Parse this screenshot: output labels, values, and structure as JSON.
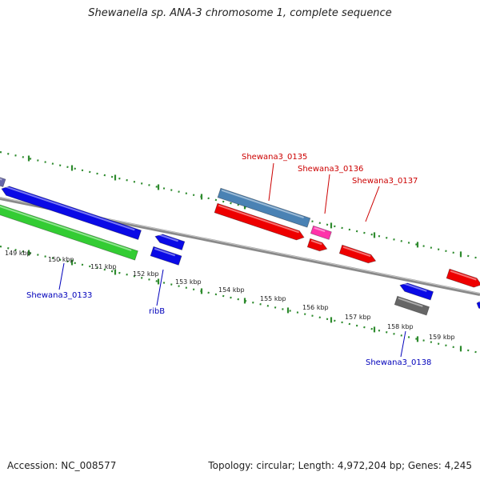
{
  "title": "Shewanella sp. ANA-3 chromosome 1, complete sequence",
  "footer": {
    "accession": "Accession: NC_008577",
    "topology": "Topology: circular; Length: 4,972,204 bp; Genes: 4,245"
  },
  "colors": {
    "backbone": "#8a8a8a",
    "tick_track": "#2e8b2e",
    "forward_gene": "#ee0000",
    "reverse_gene": "#0a0ae6",
    "green_gene": "#33cc33",
    "steelblue_gene": "#4a82b4",
    "magenta_gene": "#ff33aa",
    "gray_gene": "#666666",
    "label_red": "#cc0000",
    "label_blue": "#0000bb"
  },
  "tick_labels": [
    "149 kbp",
    "150 kbp",
    "151 kbp",
    "152 kbp",
    "153 kbp",
    "154 kbp",
    "155 kbp",
    "156 kbp",
    "157 kbp",
    "158 kbp",
    "159 kbp"
  ],
  "gene_labels": [
    {
      "name": "Shewana3_0135",
      "strand": "forward"
    },
    {
      "name": "Shewana3_0136",
      "strand": "forward"
    },
    {
      "name": "Shewana3_0137",
      "strand": "forward"
    },
    {
      "name": "Shewana3_0133",
      "strand": "reverse"
    },
    {
      "name": "ribB",
      "strand": "reverse"
    },
    {
      "name": "Shewana3_0138",
      "strand": "reverse"
    }
  ]
}
